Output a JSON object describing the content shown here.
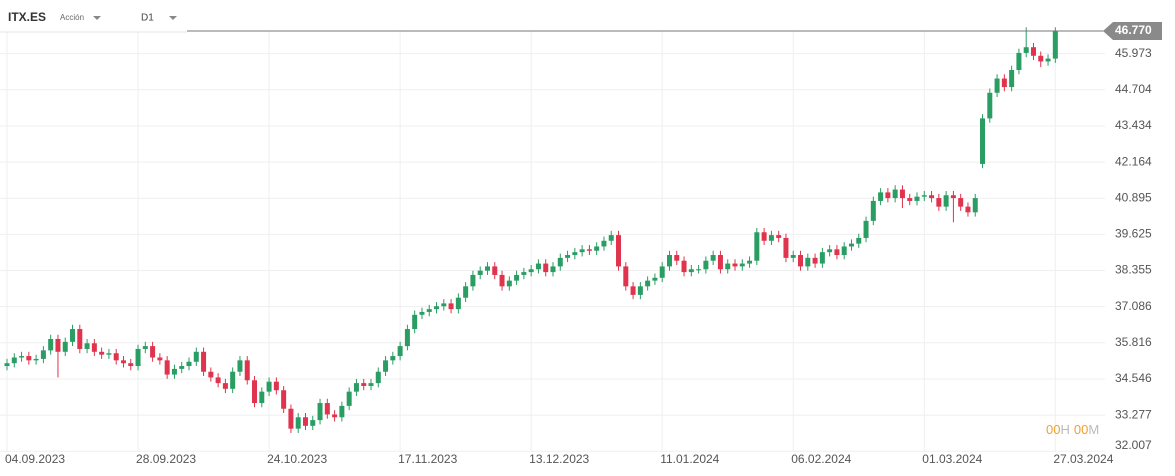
{
  "header": {
    "symbol": "ITX.ES",
    "kind": "Acción",
    "timeframe": "D1"
  },
  "countdown": [
    "00",
    "H",
    "00",
    "M"
  ],
  "chart_data": {
    "type": "candlestick",
    "up_color": "#2a9d63",
    "down_color": "#e0334d",
    "grid": true,
    "last_price": {
      "value": 46.77,
      "label": "46.770"
    },
    "ylim": [
      31.98,
      46.77
    ],
    "yticks": [
      32.007,
      33.277,
      34.546,
      35.816,
      37.086,
      38.355,
      39.625,
      40.895,
      42.164,
      43.434,
      44.704,
      45.973
    ],
    "categories": [
      "04.09.2023",
      null,
      null,
      null,
      null,
      null,
      null,
      null,
      null,
      null,
      null,
      null,
      null,
      null,
      null,
      null,
      null,
      null,
      "28.09.2023",
      null,
      null,
      null,
      null,
      null,
      null,
      null,
      null,
      null,
      null,
      null,
      null,
      null,
      null,
      null,
      null,
      null,
      "24.10.2023",
      null,
      null,
      null,
      null,
      null,
      null,
      null,
      null,
      null,
      null,
      null,
      null,
      null,
      null,
      null,
      null,
      null,
      "17.11.2023",
      null,
      null,
      null,
      null,
      null,
      null,
      null,
      null,
      null,
      null,
      null,
      null,
      null,
      null,
      null,
      null,
      null,
      "13.12.2023",
      null,
      null,
      null,
      null,
      null,
      null,
      null,
      null,
      null,
      null,
      null,
      null,
      null,
      null,
      null,
      null,
      null,
      "11.01.2024",
      null,
      null,
      null,
      null,
      null,
      null,
      null,
      null,
      null,
      null,
      null,
      null,
      null,
      null,
      null,
      null,
      null,
      "06.02.2024",
      null,
      null,
      null,
      null,
      null,
      null,
      null,
      null,
      null,
      null,
      null,
      null,
      null,
      null,
      null,
      null,
      null,
      "01.03.2024",
      null,
      null,
      null,
      null,
      null,
      null,
      null,
      null,
      null,
      null,
      null,
      null,
      null,
      null,
      null,
      null,
      null,
      "27.03.2024"
    ],
    "candles": [
      [
        35.0,
        35.25,
        34.85,
        35.1
      ],
      [
        35.1,
        35.45,
        34.95,
        35.3
      ],
      [
        35.3,
        35.5,
        35.15,
        35.35
      ],
      [
        35.35,
        35.5,
        35.05,
        35.2
      ],
      [
        35.2,
        35.4,
        35.05,
        35.25
      ],
      [
        35.25,
        35.7,
        35.1,
        35.55
      ],
      [
        35.55,
        36.1,
        35.4,
        35.95
      ],
      [
        35.95,
        36.1,
        34.6,
        35.5
      ],
      [
        35.5,
        36.0,
        35.35,
        35.85
      ],
      [
        35.85,
        36.45,
        35.7,
        36.3
      ],
      [
        36.3,
        36.45,
        35.45,
        35.6
      ],
      [
        35.6,
        35.95,
        35.45,
        35.8
      ],
      [
        35.8,
        35.95,
        35.35,
        35.5
      ],
      [
        35.5,
        35.65,
        35.25,
        35.4
      ],
      [
        35.4,
        35.6,
        35.25,
        35.45
      ],
      [
        35.45,
        35.6,
        35.05,
        35.2
      ],
      [
        35.2,
        35.35,
        34.95,
        35.1
      ],
      [
        35.1,
        35.25,
        34.85,
        35.0
      ],
      [
        35.0,
        35.75,
        34.85,
        35.6
      ],
      [
        35.6,
        35.85,
        35.45,
        35.7
      ],
      [
        35.7,
        35.85,
        35.15,
        35.3
      ],
      [
        35.3,
        35.45,
        35.05,
        35.2
      ],
      [
        35.2,
        35.35,
        34.55,
        34.7
      ],
      [
        34.7,
        35.05,
        34.55,
        34.9
      ],
      [
        34.9,
        35.15,
        34.75,
        35.0
      ],
      [
        35.0,
        35.3,
        34.85,
        35.15
      ],
      [
        35.15,
        35.65,
        35.0,
        35.5
      ],
      [
        35.5,
        35.65,
        34.65,
        34.8
      ],
      [
        34.8,
        34.95,
        34.45,
        34.6
      ],
      [
        34.6,
        34.75,
        34.25,
        34.4
      ],
      [
        34.4,
        34.55,
        34.05,
        34.2
      ],
      [
        34.2,
        34.95,
        34.05,
        34.8
      ],
      [
        34.8,
        35.35,
        34.65,
        35.2
      ],
      [
        35.2,
        35.35,
        34.35,
        34.5
      ],
      [
        34.5,
        34.65,
        33.55,
        33.7
      ],
      [
        33.7,
        34.25,
        33.55,
        34.1
      ],
      [
        34.1,
        34.6,
        33.95,
        34.45
      ],
      [
        34.45,
        34.6,
        34.0,
        34.15
      ],
      [
        34.15,
        34.3,
        33.35,
        33.5
      ],
      [
        33.5,
        33.65,
        32.65,
        32.8
      ],
      [
        32.8,
        33.35,
        32.65,
        33.2
      ],
      [
        33.2,
        33.35,
        32.75,
        32.9
      ],
      [
        32.9,
        33.25,
        32.75,
        33.1
      ],
      [
        33.1,
        33.85,
        32.95,
        33.7
      ],
      [
        33.7,
        33.85,
        33.15,
        33.3
      ],
      [
        33.3,
        33.45,
        33.05,
        33.2
      ],
      [
        33.2,
        33.75,
        33.05,
        33.6
      ],
      [
        33.6,
        34.25,
        33.45,
        34.1
      ],
      [
        34.1,
        34.55,
        33.95,
        34.4
      ],
      [
        34.4,
        34.55,
        34.15,
        34.3
      ],
      [
        34.3,
        34.55,
        34.15,
        34.4
      ],
      [
        34.4,
        34.95,
        34.25,
        34.8
      ],
      [
        34.8,
        35.35,
        34.65,
        35.2
      ],
      [
        35.2,
        35.5,
        35.05,
        35.35
      ],
      [
        35.35,
        35.85,
        35.2,
        35.7
      ],
      [
        35.7,
        36.45,
        35.55,
        36.3
      ],
      [
        36.3,
        36.95,
        36.15,
        36.8
      ],
      [
        36.8,
        37.05,
        36.65,
        36.9
      ],
      [
        36.9,
        37.15,
        36.75,
        37.0
      ],
      [
        37.0,
        37.25,
        36.85,
        37.1
      ],
      [
        37.1,
        37.35,
        36.95,
        37.2
      ],
      [
        37.2,
        37.35,
        36.85,
        37.0
      ],
      [
        37.0,
        37.55,
        36.85,
        37.4
      ],
      [
        37.4,
        37.95,
        37.25,
        37.8
      ],
      [
        37.8,
        38.35,
        37.65,
        38.2
      ],
      [
        38.2,
        38.5,
        38.05,
        38.35
      ],
      [
        38.35,
        38.65,
        38.2,
        38.5
      ],
      [
        38.5,
        38.65,
        38.05,
        38.2
      ],
      [
        38.2,
        38.35,
        37.65,
        37.8
      ],
      [
        37.8,
        38.15,
        37.65,
        38.0
      ],
      [
        38.0,
        38.35,
        37.85,
        38.2
      ],
      [
        38.2,
        38.45,
        38.05,
        38.3
      ],
      [
        38.3,
        38.55,
        38.15,
        38.4
      ],
      [
        38.4,
        38.75,
        38.25,
        38.6
      ],
      [
        38.6,
        38.75,
        38.15,
        38.3
      ],
      [
        38.3,
        38.65,
        38.15,
        38.5
      ],
      [
        38.5,
        38.95,
        38.35,
        38.8
      ],
      [
        38.8,
        39.05,
        38.65,
        38.9
      ],
      [
        38.9,
        39.15,
        38.75,
        39.0
      ],
      [
        39.0,
        39.25,
        38.85,
        39.1
      ],
      [
        39.1,
        39.25,
        38.9,
        39.05
      ],
      [
        39.05,
        39.35,
        38.9,
        39.2
      ],
      [
        39.2,
        39.55,
        39.05,
        39.4
      ],
      [
        39.4,
        39.75,
        39.25,
        39.6
      ],
      [
        39.6,
        39.75,
        38.35,
        38.5
      ],
      [
        38.5,
        38.65,
        37.65,
        37.8
      ],
      [
        37.8,
        37.95,
        37.35,
        37.5
      ],
      [
        37.5,
        37.95,
        37.35,
        37.8
      ],
      [
        37.8,
        38.15,
        37.65,
        38.0
      ],
      [
        38.0,
        38.25,
        37.85,
        38.1
      ],
      [
        38.1,
        38.65,
        37.95,
        38.5
      ],
      [
        38.5,
        39.05,
        38.35,
        38.9
      ],
      [
        38.9,
        39.05,
        38.55,
        38.7
      ],
      [
        38.7,
        38.85,
        38.15,
        38.3
      ],
      [
        38.3,
        38.55,
        38.15,
        38.4
      ],
      [
        38.4,
        38.55,
        38.25,
        38.4
      ],
      [
        38.4,
        38.85,
        38.25,
        38.7
      ],
      [
        38.7,
        39.05,
        38.55,
        38.9
      ],
      [
        38.9,
        39.05,
        38.25,
        38.4
      ],
      [
        38.4,
        38.75,
        38.25,
        38.6
      ],
      [
        38.6,
        38.75,
        38.35,
        38.5
      ],
      [
        38.5,
        38.75,
        38.35,
        38.6
      ],
      [
        38.6,
        38.85,
        38.45,
        38.7
      ],
      [
        38.7,
        39.85,
        38.55,
        39.7
      ],
      [
        39.7,
        39.85,
        39.25,
        39.4
      ],
      [
        39.4,
        39.75,
        39.25,
        39.6
      ],
      [
        39.6,
        39.75,
        39.35,
        39.5
      ],
      [
        39.5,
        39.65,
        38.65,
        38.8
      ],
      [
        38.8,
        39.05,
        38.65,
        38.9
      ],
      [
        38.9,
        39.05,
        38.35,
        38.5
      ],
      [
        38.5,
        38.95,
        38.35,
        38.8
      ],
      [
        38.8,
        38.95,
        38.45,
        38.6
      ],
      [
        38.6,
        39.15,
        38.45,
        39.0
      ],
      [
        39.0,
        39.25,
        38.85,
        39.1
      ],
      [
        39.1,
        39.25,
        38.75,
        38.9
      ],
      [
        38.9,
        39.35,
        38.75,
        39.2
      ],
      [
        39.2,
        39.45,
        39.05,
        39.3
      ],
      [
        39.3,
        39.65,
        39.15,
        39.5
      ],
      [
        39.5,
        40.25,
        39.35,
        40.1
      ],
      [
        40.1,
        40.95,
        39.95,
        40.8
      ],
      [
        40.8,
        41.25,
        40.65,
        41.1
      ],
      [
        41.1,
        41.25,
        40.75,
        40.9
      ],
      [
        40.9,
        41.35,
        40.75,
        41.2
      ],
      [
        41.2,
        41.35,
        40.55,
        40.9
      ],
      [
        40.9,
        41.05,
        40.65,
        40.8
      ],
      [
        40.8,
        41.1,
        40.65,
        40.95
      ],
      [
        40.95,
        41.15,
        40.8,
        41.0
      ],
      [
        41.0,
        41.15,
        40.75,
        40.9
      ],
      [
        40.9,
        41.05,
        40.45,
        40.6
      ],
      [
        40.6,
        41.15,
        40.45,
        41.0
      ],
      [
        41.0,
        41.15,
        40.05,
        40.9
      ],
      [
        40.9,
        41.05,
        40.45,
        40.6
      ],
      [
        40.6,
        40.75,
        40.25,
        40.4
      ],
      [
        40.4,
        41.05,
        40.25,
        40.9
      ],
      [
        42.1,
        43.85,
        41.95,
        43.7
      ],
      [
        43.7,
        44.75,
        43.55,
        44.6
      ],
      [
        44.6,
        45.25,
        44.45,
        45.1
      ],
      [
        45.1,
        45.25,
        44.65,
        44.8
      ],
      [
        44.8,
        45.55,
        44.65,
        45.4
      ],
      [
        45.4,
        46.15,
        45.25,
        46.0
      ],
      [
        46.0,
        46.9,
        45.85,
        46.2
      ],
      [
        46.2,
        46.35,
        45.75,
        45.9
      ],
      [
        45.9,
        46.05,
        45.5,
        45.7
      ],
      [
        45.7,
        45.95,
        45.55,
        45.8
      ],
      [
        45.8,
        46.9,
        45.65,
        46.77
      ]
    ]
  }
}
